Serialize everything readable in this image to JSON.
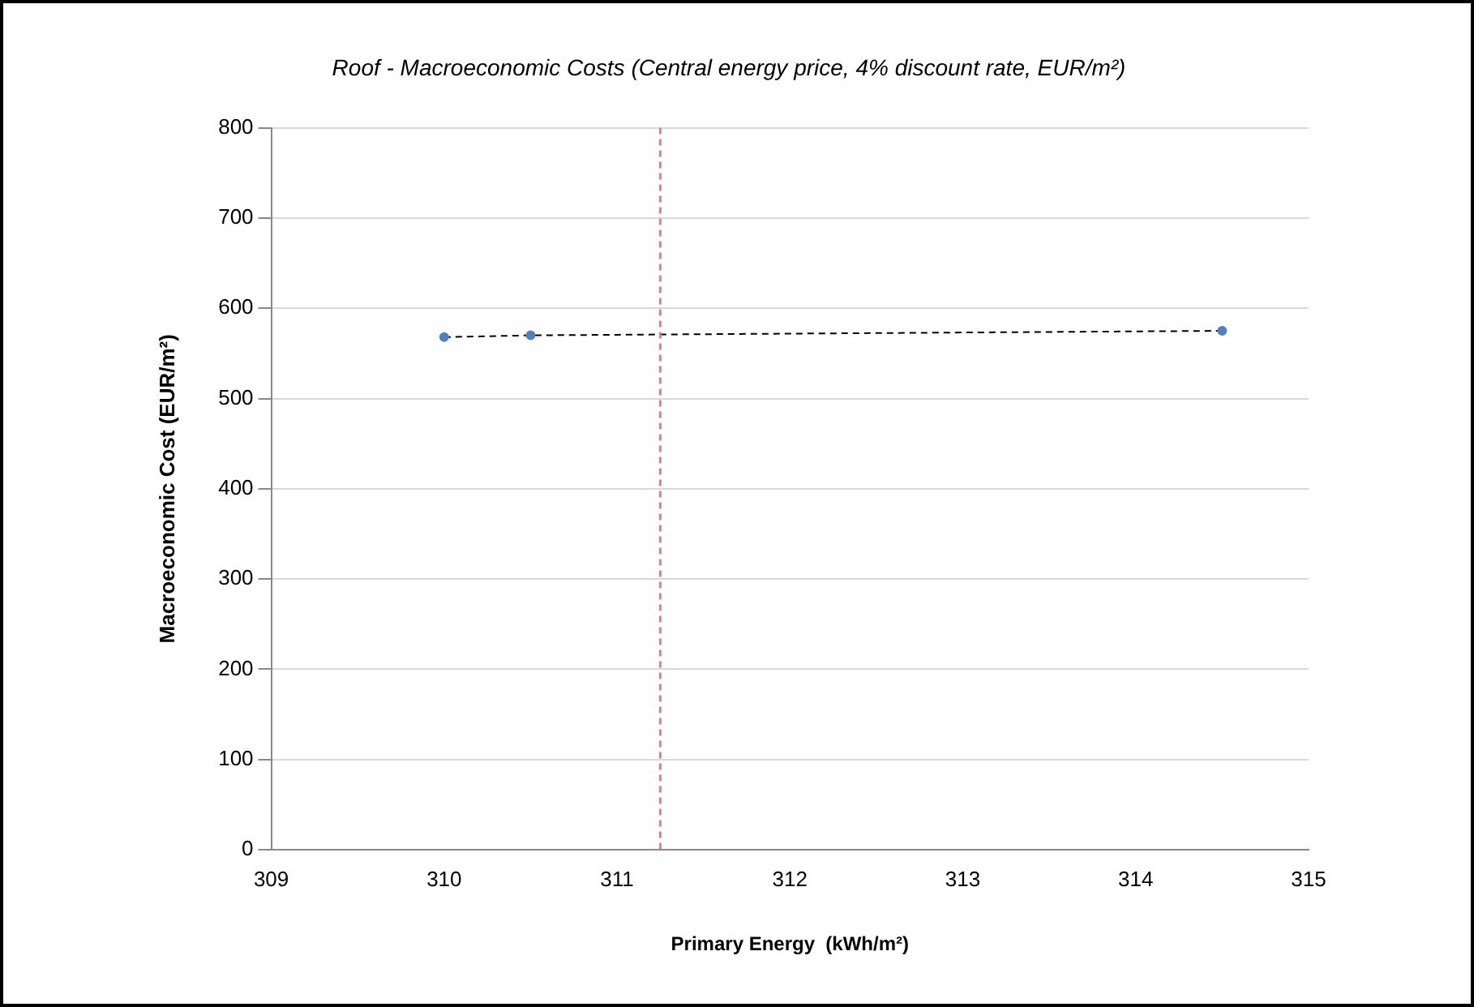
{
  "chart_data": {
    "type": "line",
    "title": "Roof - Macroeconomic Costs (Central energy price, 4% discount rate, EUR/m²)",
    "xlabel": "Primary Energy  (kWh/m²)",
    "ylabel": "Macroeconomic Cost (EUR/m²)",
    "series": [
      {
        "color": "#4f81bd",
        "x": [
          310,
          310.5,
          314.5
        ],
        "values": [
          568,
          570,
          575
        ]
      }
    ],
    "xlim": [
      309,
      315
    ],
    "xticks": [
      309,
      310,
      311,
      312,
      313,
      314,
      315
    ],
    "ylim": [
      0,
      800
    ],
    "yticks": [
      0,
      100,
      200,
      300,
      400,
      500,
      600,
      700,
      800
    ],
    "ref_lines": [
      {
        "axis": "x",
        "value": 311.25,
        "color": "#e08080",
        "line_style": "dashed"
      }
    ],
    "grid": "y",
    "legend": false,
    "marker": "circle",
    "line_style": "dashed"
  }
}
